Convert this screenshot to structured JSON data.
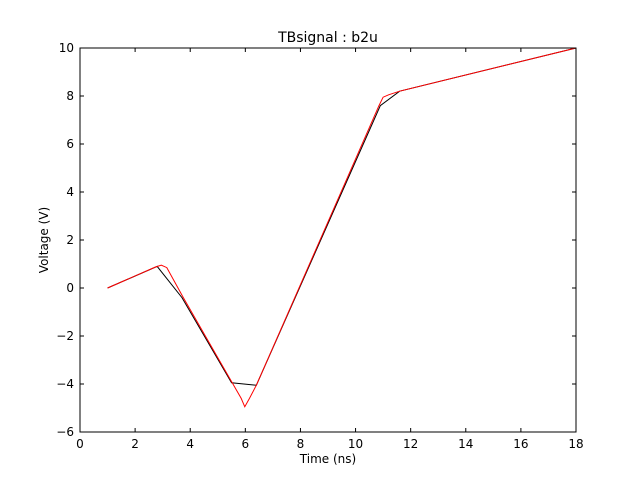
{
  "chart_data": {
    "type": "line",
    "title": "TBsignal : b2u",
    "xlabel": "Time (ns)",
    "ylabel": "Voltage (V)",
    "xlim": [
      0,
      18
    ],
    "ylim": [
      -6,
      10
    ],
    "xticks": [
      0,
      2,
      4,
      6,
      8,
      10,
      12,
      14,
      16,
      18
    ],
    "yticks": [
      -6,
      -4,
      -2,
      0,
      2,
      4,
      6,
      8,
      10
    ],
    "grid": false,
    "legend": "none",
    "series": [
      {
        "color": "#000000",
        "points": [
          [
            1.0,
            0.0
          ],
          [
            2.8,
            0.9
          ],
          [
            3.7,
            -0.4
          ],
          [
            5.5,
            -3.95
          ],
          [
            6.4,
            -4.05
          ],
          [
            10.9,
            7.6
          ],
          [
            11.6,
            8.2
          ],
          [
            18.0,
            10.0
          ]
        ]
      },
      {
        "color": "#ff0000",
        "points": [
          [
            1.0,
            0.0
          ],
          [
            2.75,
            0.88
          ],
          [
            2.95,
            0.95
          ],
          [
            3.15,
            0.85
          ],
          [
            3.75,
            -0.4
          ],
          [
            5.2,
            -3.3
          ],
          [
            5.85,
            -4.6
          ],
          [
            5.98,
            -4.95
          ],
          [
            6.15,
            -4.6
          ],
          [
            6.4,
            -4.05
          ],
          [
            10.85,
            7.6
          ],
          [
            11.0,
            7.95
          ],
          [
            11.2,
            8.05
          ],
          [
            11.6,
            8.2
          ],
          [
            18.0,
            10.0
          ]
        ]
      }
    ]
  }
}
